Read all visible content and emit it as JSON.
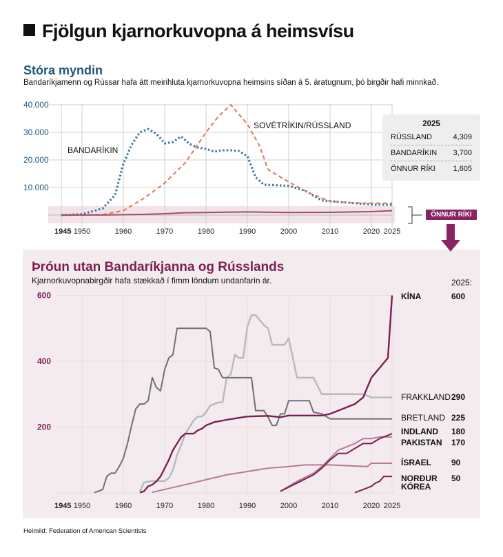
{
  "header": {
    "title": "Fjölgun kjarnorkuvopna á heimsvísu",
    "section1_title": "Stóra myndin",
    "section1_desc": "Bandaríkjamenn og Rússar hafa átt meirihluta kjarnorkuvopna heimsins síðan á 5. áratugnum, þó birgðir hafi minnkað.",
    "section2_title": "Þróun utan Bandaríkjanna og Rússlands",
    "section2_desc": "Kjarnorkuvopnabirgðir hafa stækkað í fimm löndum undanfarin ár.",
    "source": "Heimild: Federation of American Scientists"
  },
  "summary_box": {
    "year": "2025",
    "rows": [
      {
        "label": "RÚSSLAND",
        "value": "4,309"
      },
      {
        "label": "BANDARÍKIN",
        "value": "3,700"
      },
      {
        "label": "ÖNNUR RÍKI",
        "value": "1,605"
      }
    ]
  },
  "other_tag": "ÖNNUR RÍKI",
  "colors": {
    "usa": "#3a7ca5",
    "russia": "#e0775a",
    "other": "#a44a6e",
    "china": "#7a1f55",
    "france": "#b4babd",
    "uk": "#6b7175",
    "india": "#7a1f55",
    "pakistan": "#b87a95",
    "israel": "#b87a95",
    "nk": "#7a1f55"
  },
  "chart_data": [
    {
      "type": "line",
      "title": "Stóra myndin",
      "xlabel": "",
      "ylabel": "",
      "xlim": [
        1945,
        2025
      ],
      "ylim": [
        0,
        40000
      ],
      "xticks": [
        "1945",
        "1950",
        "1960",
        "1970",
        "1980",
        "1990",
        "2000",
        "2010",
        "2020",
        "2025"
      ],
      "yticks": [
        "10.000",
        "20.000",
        "30.000",
        "40.000"
      ],
      "grid": true,
      "series": [
        {
          "name": "BANDARÍKIN",
          "style": "dotted",
          "color": "#3a7ca5",
          "x": [
            1945,
            1950,
            1955,
            1958,
            1960,
            1962,
            1964,
            1966,
            1968,
            1970,
            1972,
            1974,
            1976,
            1978,
            1980,
            1982,
            1984,
            1986,
            1988,
            1990,
            1992,
            1994,
            1996,
            2000,
            2004,
            2008,
            2012,
            2016,
            2020,
            2025
          ],
          "y": [
            2,
            300,
            2400,
            7300,
            18600,
            25500,
            30000,
            31200,
            29500,
            26000,
            26500,
            28500,
            25800,
            24500,
            24000,
            23000,
            23500,
            23500,
            23200,
            21400,
            13700,
            11000,
            10900,
            10600,
            8800,
            5300,
            4800,
            4300,
            3800,
            3700
          ]
        },
        {
          "name": "SOVÉTRÍKIN/RÚSSLAND",
          "style": "dashed",
          "color": "#e0775a",
          "x": [
            1945,
            1950,
            1955,
            1960,
            1965,
            1970,
            1975,
            1980,
            1983,
            1986,
            1990,
            1993,
            1995,
            2000,
            2005,
            2010,
            2015,
            2020,
            2025
          ],
          "y": [
            0,
            5,
            200,
            1600,
            6100,
            11600,
            19000,
            30000,
            35800,
            40000,
            33000,
            25000,
            16500,
            12000,
            8000,
            5000,
            4500,
            4300,
            4309
          ]
        },
        {
          "name": "ÖNNUR RÍKI",
          "style": "solid",
          "color": "#a44a6e",
          "x": [
            1945,
            1955,
            1965,
            1970,
            1975,
            1980,
            1990,
            2000,
            2010,
            2020,
            2025
          ],
          "y": [
            0,
            30,
            250,
            500,
            850,
            950,
            1150,
            950,
            1000,
            1250,
            1605
          ]
        }
      ],
      "annotations": [
        "BANDARÍKIN",
        "SOVÉTRÍKIN/RÚSSLAND"
      ]
    },
    {
      "type": "line",
      "title": "Þróun utan Bandaríkjanna og Rússlands",
      "xlim": [
        1945,
        2025
      ],
      "ylim": [
        0,
        600
      ],
      "xticks": [
        "1945",
        "1950",
        "1960",
        "1970",
        "1980",
        "1990",
        "2000",
        "2010",
        "2020",
        "2025"
      ],
      "yticks": [
        "200",
        "400",
        "600"
      ],
      "legend_header": "2025:",
      "grid": true,
      "series": [
        {
          "name": "KÍNA",
          "value_2025": "600",
          "color": "#7a1f55",
          "width": 2.4,
          "x": [
            1964,
            1965,
            1966,
            1967,
            1968,
            1969,
            1970,
            1971,
            1972,
            1973,
            1974,
            1975,
            1976,
            1977,
            1978,
            1979,
            1980,
            1982,
            1985,
            1990,
            1995,
            1998,
            2000,
            2005,
            2008,
            2010,
            2012,
            2014,
            2016,
            2018,
            2020,
            2022,
            2024,
            2025
          ],
          "y": [
            1,
            5,
            20,
            25,
            35,
            50,
            75,
            100,
            130,
            150,
            170,
            180,
            180,
            180,
            190,
            195,
            205,
            215,
            222,
            232,
            234,
            230,
            235,
            235,
            235,
            240,
            250,
            260,
            270,
            290,
            350,
            380,
            410,
            600
          ]
        },
        {
          "name": "FRAKKLAND",
          "value_2025": "290",
          "color": "#b4babd",
          "width": 2.4,
          "x": [
            1964,
            1965,
            1967,
            1969,
            1970,
            1971,
            1972,
            1973,
            1974,
            1975,
            1976,
            1977,
            1978,
            1979,
            1980,
            1981,
            1982,
            1983,
            1984,
            1985,
            1986,
            1987,
            1988,
            1989,
            1990,
            1991,
            1992,
            1993,
            1994,
            1995,
            1996,
            1997,
            1998,
            1999,
            2000,
            2002,
            2005,
            2006,
            2008,
            2010,
            2015,
            2018,
            2020,
            2025
          ],
          "y": [
            4,
            32,
            36,
            36,
            36,
            45,
            70,
            115,
            145,
            180,
            200,
            220,
            232,
            232,
            245,
            265,
            270,
            275,
            275,
            350,
            360,
            420,
            410,
            410,
            505,
            540,
            540,
            525,
            510,
            500,
            450,
            450,
            450,
            450,
            470,
            350,
            350,
            350,
            300,
            300,
            300,
            300,
            290,
            290
          ]
        },
        {
          "name": "BRETLAND",
          "value_2025": "225",
          "color": "#6b7175",
          "width": 2,
          "x": [
            1953,
            1955,
            1956,
            1957,
            1958,
            1959,
            1960,
            1961,
            1962,
            1963,
            1964,
            1965,
            1966,
            1967,
            1968,
            1969,
            1970,
            1971,
            1972,
            1973,
            1974,
            1975,
            1980,
            1981,
            1982,
            1983,
            1984,
            1985,
            1990,
            1991,
            1992,
            1993,
            1994,
            1995,
            1996,
            1997,
            1998,
            1999,
            2000,
            2005,
            2006,
            2008,
            2010,
            2015,
            2020,
            2025
          ],
          "y": [
            1,
            10,
            50,
            60,
            60,
            80,
            105,
            150,
            205,
            255,
            270,
            270,
            280,
            350,
            320,
            310,
            375,
            410,
            420,
            500,
            500,
            500,
            500,
            490,
            380,
            375,
            350,
            350,
            350,
            350,
            250,
            250,
            250,
            230,
            205,
            205,
            240,
            240,
            280,
            280,
            245,
            240,
            225,
            225,
            225,
            225
          ]
        },
        {
          "name": "INDLAND",
          "value_2025": "180",
          "color": "#7a1f55",
          "width": 2,
          "x": [
            1998,
            2002,
            2006,
            2008,
            2010,
            2012,
            2014,
            2016,
            2018,
            2020,
            2022,
            2024,
            2025
          ],
          "y": [
            5,
            30,
            55,
            75,
            100,
            120,
            120,
            135,
            150,
            150,
            165,
            175,
            180
          ]
        },
        {
          "name": "PAKISTAN",
          "value_2025": "170",
          "color": "#b87a95",
          "width": 2,
          "x": [
            1998,
            2002,
            2006,
            2008,
            2010,
            2012,
            2014,
            2016,
            2018,
            2020,
            2022,
            2024,
            2025
          ],
          "y": [
            5,
            35,
            60,
            80,
            105,
            130,
            140,
            150,
            165,
            165,
            170,
            170,
            170
          ]
        },
        {
          "name": "ÍSRAEL",
          "value_2025": "90",
          "color": "#b87a95",
          "width": 2,
          "x": [
            1967,
            1975,
            1980,
            1985,
            1990,
            1995,
            2000,
            2004,
            2010,
            2019,
            2020,
            2025
          ],
          "y": [
            2,
            25,
            40,
            55,
            65,
            75,
            80,
            85,
            85,
            80,
            90,
            90
          ]
        },
        {
          "name": "NORÐUR KÓREA",
          "value_2025": "50",
          "color": "#7a1f55",
          "width": 2,
          "x": [
            2016,
            2018,
            2019,
            2020,
            2021,
            2022,
            2023,
            2024,
            2025
          ],
          "y": [
            1,
            10,
            15,
            20,
            30,
            35,
            50,
            50,
            50
          ]
        }
      ]
    }
  ]
}
